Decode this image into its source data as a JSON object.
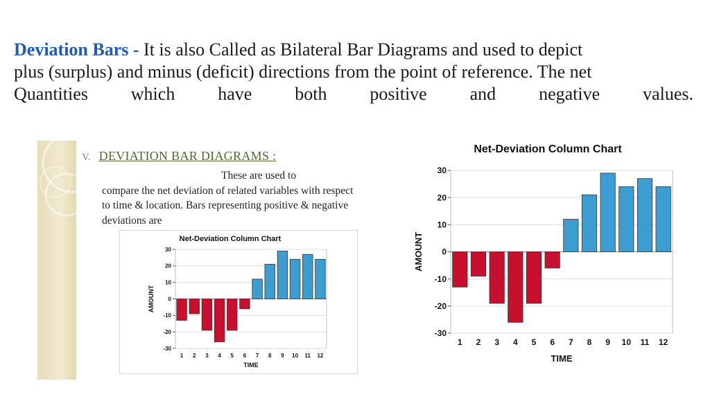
{
  "heading": {
    "highlight": "Deviation Bars -",
    "line1": " It is also Called as Bilateral Bar Diagrams and used to depict",
    "line2": "plus (surplus) and minus (deficit) directions from the point of reference. The net",
    "line3_words": [
      "Quantities",
      "which",
      "have",
      "both",
      "positive",
      "and",
      "negative",
      "values."
    ]
  },
  "slide": {
    "number": "V.",
    "title": "DEVIATION BAR DIAGRAMS :",
    "text_line1": "These are used to",
    "text_rest": "compare the net deviation of related variables with respect to time & location. Bars representing positive & negative deviations are"
  },
  "chart_data": [
    {
      "type": "bar",
      "title": "Net-Deviation Column Chart",
      "xlabel": "TIME",
      "ylabel": "AMOUNT",
      "categories": [
        "1",
        "2",
        "3",
        "4",
        "5",
        "6",
        "7",
        "8",
        "9",
        "10",
        "11",
        "12"
      ],
      "values": [
        -13,
        -9,
        -19,
        -26,
        -19,
        -6,
        12,
        21,
        29,
        24,
        27,
        24
      ],
      "ylim": [
        -30,
        30
      ],
      "yticks": [
        "-30",
        "-20",
        "-10",
        "0",
        "10",
        "20",
        "30"
      ],
      "positive_color": "#3d9dd0",
      "negative_color": "#c8102e",
      "grid": true
    },
    {
      "type": "bar",
      "title": "Net-Deviation Column Chart",
      "xlabel": "TIME",
      "ylabel": "AMOUNT",
      "categories": [
        "1",
        "2",
        "3",
        "4",
        "5",
        "6",
        "7",
        "8",
        "9",
        "10",
        "11",
        "12"
      ],
      "values": [
        -13,
        -9,
        -19,
        -26,
        -19,
        -6,
        12,
        21,
        29,
        24,
        27,
        24
      ],
      "ylim": [
        -30,
        30
      ],
      "yticks": [
        "-30",
        "-20",
        "-10",
        "0",
        "10",
        "20",
        "30"
      ],
      "positive_color": "#3d9dd0",
      "negative_color": "#c8102e",
      "grid": true
    }
  ]
}
